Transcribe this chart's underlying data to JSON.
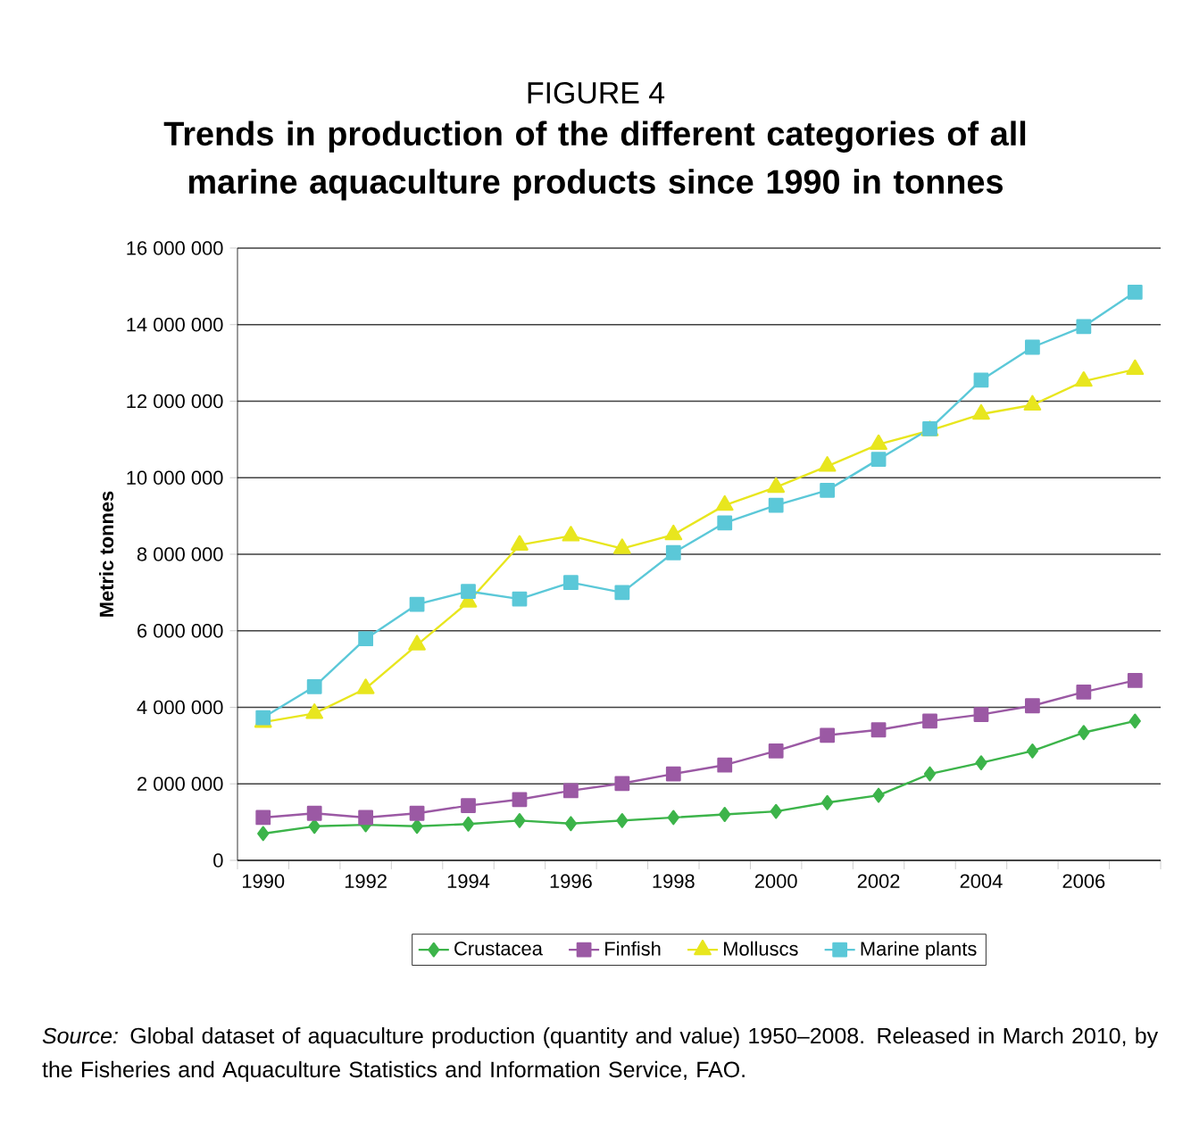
{
  "chart_data": {
    "type": "line",
    "title": "FIGURE 4",
    "subtitle": "Trends in production of the different categories of all marine aquaculture products since 1990 in tonnes",
    "ylabel": "Metric tonnes",
    "annotations": [
      "*Source:* Global dataset of aquaculture production (quantity and value) 1950–2008. Released in March 2010, by the Fisheries and Aquaculture Statistics and Information Service, FAO."
    ],
    "categories": [
      "1990",
      null,
      "1992",
      null,
      "1994",
      null,
      "1996",
      null,
      "1998",
      null,
      "2000",
      null,
      "2002",
      null,
      "2004",
      null,
      "2006",
      null
    ],
    "series": [
      {
        "name": "Crustacea",
        "color": "#3cb44a",
        "marker": "diamond",
        "values": [
          700000,
          890000,
          930000,
          890000,
          950000,
          1040000,
          960000,
          1040000,
          1120000,
          1200000,
          1280000,
          1510000,
          1700000,
          2260000,
          2550000,
          2860000,
          3340000,
          3640000
        ]
      },
      {
        "name": "Finfish",
        "color": "#9b59a4",
        "marker": "square",
        "values": [
          1120000,
          1230000,
          1120000,
          1230000,
          1430000,
          1590000,
          1820000,
          2010000,
          2260000,
          2490000,
          2860000,
          3270000,
          3410000,
          3640000,
          3810000,
          4040000,
          4400000,
          4700000
        ]
      },
      {
        "name": "Molluscs",
        "color": "#e8e61e",
        "marker": "triangle",
        "values": [
          3610000,
          3840000,
          4490000,
          5630000,
          6750000,
          8240000,
          8480000,
          8150000,
          8510000,
          9280000,
          9750000,
          10300000,
          10870000,
          11230000,
          11660000,
          11900000,
          12520000,
          12830000
        ]
      },
      {
        "name": "Marine plants",
        "color": "#5bc8d8",
        "marker": "square",
        "values": [
          3730000,
          4540000,
          5790000,
          6690000,
          7030000,
          6830000,
          7260000,
          7000000,
          8040000,
          8820000,
          9280000,
          9670000,
          10480000,
          11280000,
          12550000,
          13410000,
          13950000,
          14850000
        ]
      }
    ],
    "ylim": [
      0,
      16000000
    ],
    "yticks": [
      {
        "value": 0,
        "label": "0"
      },
      {
        "value": 2000000,
        "label": "2 000 000"
      },
      {
        "value": 4000000,
        "label": "4 000 000"
      },
      {
        "value": 6000000,
        "label": "6 000 000"
      },
      {
        "value": 8000000,
        "label": "8 000 000"
      },
      {
        "value": 10000000,
        "label": "10 000 000"
      },
      {
        "value": 12000000,
        "label": "12 000 000"
      },
      {
        "value": 14000000,
        "label": "14 000 000"
      },
      {
        "value": 16000000,
        "label": "16 000 000"
      }
    ],
    "grid": "y",
    "legend": "bottom"
  }
}
